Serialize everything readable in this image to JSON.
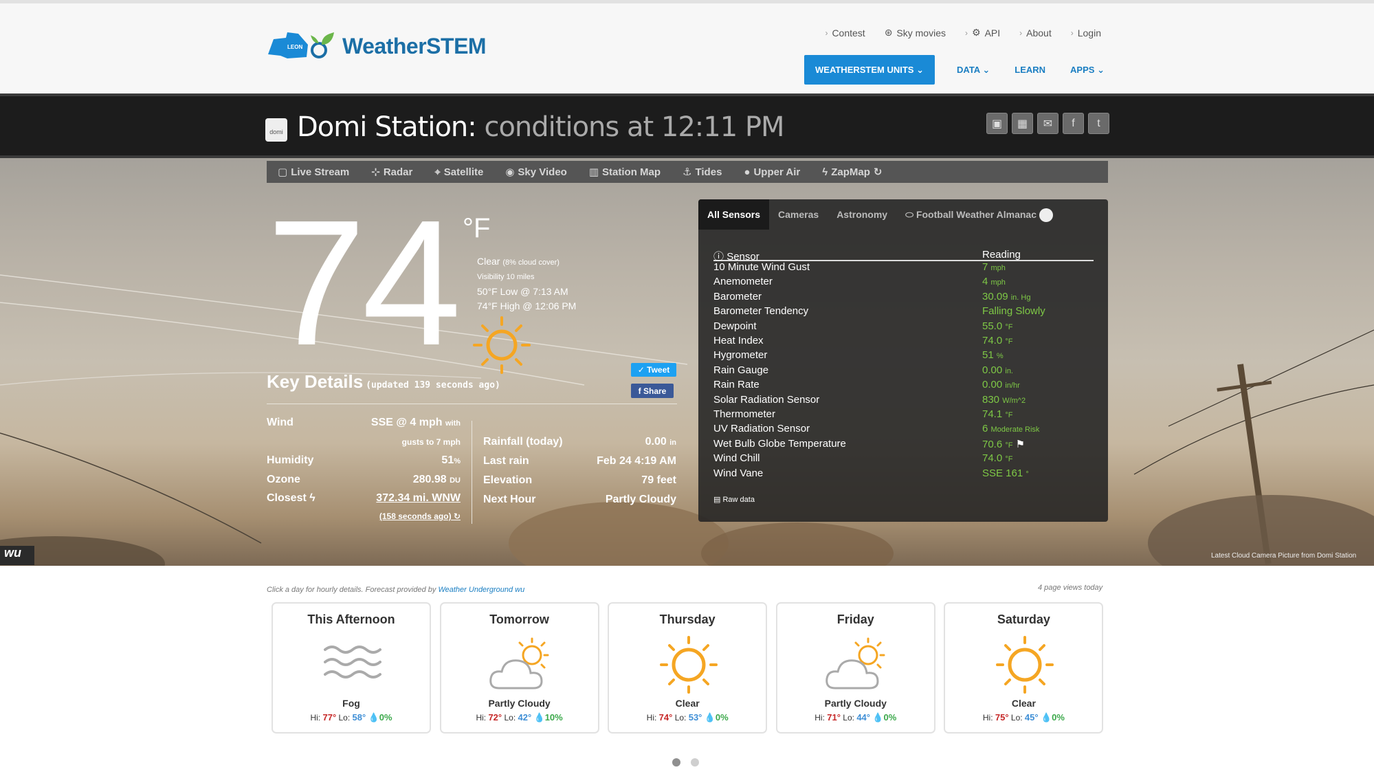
{
  "header": {
    "brand": "WeatherSTEM",
    "county_label": "LEON",
    "top_links": [
      "Contest",
      "Sky movies",
      "API",
      "About",
      "Login"
    ],
    "nav": {
      "units": "WEATHERSTEM UNITS",
      "data": "DATA",
      "learn": "LEARN",
      "apps": "APPS"
    }
  },
  "station": {
    "icon_label": "domi",
    "name": "Domi Station:",
    "subtitle": "conditions at 12:11 PM"
  },
  "subnav": [
    "Live Stream",
    "Radar",
    "Satellite",
    "Sky Video",
    "Station Map",
    "Tides",
    "Upper Air",
    "ZapMap"
  ],
  "current": {
    "temperature": "74",
    "unit": "°F",
    "sky": "Clear",
    "cloud_cover": "(8% cloud cover)",
    "visibility": "Visibility 10 miles",
    "low": "50°F Low @ 7:13 AM",
    "high": "74°F High @ 12:06 PM"
  },
  "social": {
    "tweet": "Tweet",
    "share": "Share"
  },
  "key_details": {
    "title": "Key Details",
    "updated": "(updated 139 seconds ago)",
    "left": {
      "wind_label": "Wind",
      "wind_value": "SSE @ 4 mph",
      "wind_with": "with",
      "wind_gusts": "gusts to 7 mph",
      "humidity_label": "Humidity",
      "humidity_value": "51",
      "humidity_unit": "%",
      "ozone_label": "Ozone",
      "ozone_value": "280.98",
      "ozone_unit": "DU",
      "closest_label": "Closest",
      "closest_value": "372.34 mi. WNW",
      "closest_time": "(158 seconds ago)"
    },
    "right": {
      "rain_label": "Rainfall (today)",
      "rain_value": "0.00",
      "rain_unit": "in",
      "lastrain_label": "Last rain",
      "lastrain_value": "Feb 24 4:19 AM",
      "elevation_label": "Elevation",
      "elevation_value": "79 feet",
      "nexthour_label": "Next Hour",
      "nexthour_value": "Partly Cloudy"
    }
  },
  "panel": {
    "tabs": [
      "All Sensors",
      "Cameras",
      "Astronomy",
      "Football Weather Almanac"
    ],
    "col_sensor": "Sensor",
    "col_reading": "Reading",
    "rows": [
      {
        "sensor": "10 Minute Wind Gust",
        "value": "7",
        "unit": "mph"
      },
      {
        "sensor": "Anemometer",
        "value": "4",
        "unit": "mph"
      },
      {
        "sensor": "Barometer",
        "value": "30.09",
        "unit": "in. Hg"
      },
      {
        "sensor": "Barometer Tendency",
        "value": "Falling Slowly",
        "unit": ""
      },
      {
        "sensor": "Dewpoint",
        "value": "55.0",
        "unit": "°F"
      },
      {
        "sensor": "Heat Index",
        "value": "74.0",
        "unit": "°F"
      },
      {
        "sensor": "Hygrometer",
        "value": "51",
        "unit": "%"
      },
      {
        "sensor": "Rain Gauge",
        "value": "0.00",
        "unit": "in."
      },
      {
        "sensor": "Rain Rate",
        "value": "0.00",
        "unit": "in/hr"
      },
      {
        "sensor": "Solar Radiation Sensor",
        "value": "830",
        "unit": "W/m^2"
      },
      {
        "sensor": "Thermometer",
        "value": "74.1",
        "unit": "°F"
      },
      {
        "sensor": "UV Radiation Sensor",
        "value": "6",
        "unit": "Moderate Risk"
      },
      {
        "sensor": "Wet Bulb Globe Temperature",
        "value": "70.6",
        "unit": "°F"
      },
      {
        "sensor": "Wind Chill",
        "value": "74.0",
        "unit": "°F"
      },
      {
        "sensor": "Wind Vane",
        "value": "SSE 161",
        "unit": "°"
      }
    ],
    "raw_data": "Raw data"
  },
  "camera_caption": "Latest Cloud Camera Picture from Domi Station",
  "wu_badge": "wu",
  "forecast": {
    "note": "Click a day for hourly details. Forecast provided by",
    "provider": "Weather Underground",
    "page_views": "4 page views today",
    "hi_label": "Hi:",
    "lo_label": "Lo:",
    "days": [
      {
        "day": "This Afternoon",
        "condition": "Fog",
        "icon": "fog-icon",
        "hi": "77°",
        "lo": "58°",
        "pop": "0%"
      },
      {
        "day": "Tomorrow",
        "condition": "Partly Cloudy",
        "icon": "partly-cloudy-icon",
        "hi": "72°",
        "lo": "42°",
        "pop": "10%"
      },
      {
        "day": "Thursday",
        "condition": "Clear",
        "icon": "sun-icon",
        "hi": "74°",
        "lo": "53°",
        "pop": "0%"
      },
      {
        "day": "Friday",
        "condition": "Partly Cloudy",
        "icon": "partly-cloudy-icon",
        "hi": "71°",
        "lo": "44°",
        "pop": "0%"
      },
      {
        "day": "Saturday",
        "condition": "Clear",
        "icon": "sun-icon",
        "hi": "75°",
        "lo": "45°",
        "pop": "0%"
      }
    ]
  },
  "colors": {
    "brand_blue": "#1a8ad6",
    "reading_green": "#7ec846",
    "sun_orange": "#f5a623",
    "hi_red": "#c62828",
    "lo_blue": "#3f8fd6",
    "pop_green": "#3ba84a"
  }
}
